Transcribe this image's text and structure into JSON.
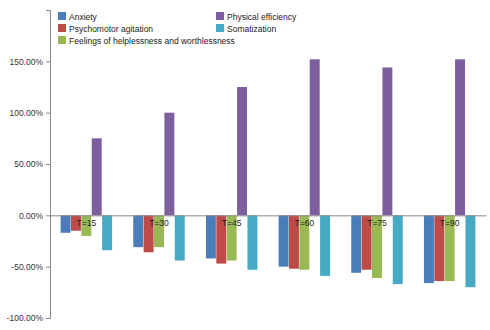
{
  "chart_data": {
    "type": "bar",
    "categories": [
      "T=15",
      "T=30",
      "T=45",
      "T=60",
      "T=75",
      "T=90"
    ],
    "series": [
      {
        "name": "Anxiety",
        "color": "#4a7ebb",
        "values": [
          -17,
          -31,
          -42,
          -50,
          -56,
          -66
        ]
      },
      {
        "name": "Psychomotor agitation",
        "color": "#be4b48",
        "values": [
          -15,
          -36,
          -47,
          -52,
          -53,
          -64
        ]
      },
      {
        "name": "Feelings of helplessness and worthlessness",
        "color": "#98b954",
        "values": [
          -20,
          -31,
          -44,
          -53,
          -61,
          -64
        ]
      },
      {
        "name": "Physical efficiency",
        "color": "#7d5fa0",
        "values": [
          75,
          100,
          125,
          152,
          144,
          152
        ]
      },
      {
        "name": "Somatization",
        "color": "#46aac5",
        "values": [
          -34,
          -44,
          -53,
          -59,
          -67,
          -70
        ]
      }
    ],
    "ylim": [
      -100,
      200
    ],
    "yticks": [
      {
        "value": -100,
        "label": "-100.00%"
      },
      {
        "value": -50,
        "label": "-50.00%"
      },
      {
        "value": 0,
        "label": "0.00%"
      },
      {
        "value": 50,
        "label": "50.00%"
      },
      {
        "value": 100,
        "label": "100.00%"
      },
      {
        "value": 150,
        "label": "150.00%"
      }
    ],
    "grid": false,
    "legend": "upper-left"
  }
}
